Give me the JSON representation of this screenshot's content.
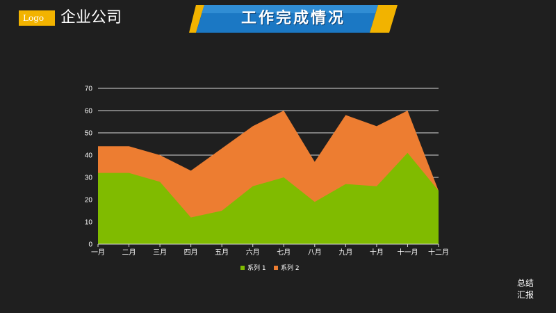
{
  "header": {
    "logo_text": "Logo",
    "company_name": "企业公司",
    "title": "工作完成情况"
  },
  "corner": {
    "line1": "总结",
    "line2": "汇报"
  },
  "colors": {
    "background": "#1f1f1f",
    "logo_bg": "#f2b300",
    "banner_blue": "#1b78c4",
    "banner_yellow": "#f2b300",
    "series1": "#80bb00",
    "series2": "#ed7d31",
    "gridline": "#d9d9d9",
    "axis_text": "#ffffff"
  },
  "chart_data": {
    "type": "area",
    "stacked": true,
    "categories": [
      "一月",
      "二月",
      "三月",
      "四月",
      "五月",
      "六月",
      "七月",
      "八月",
      "九月",
      "十月",
      "十一月",
      "十二月"
    ],
    "series": [
      {
        "name": "系列 1",
        "values": [
          32,
          32,
          28,
          12,
          15,
          26,
          30,
          19,
          27,
          26,
          41,
          24
        ]
      },
      {
        "name": "系列 2",
        "values": [
          12,
          12,
          12,
          21,
          28,
          27,
          30,
          18,
          31,
          27,
          19,
          0
        ]
      }
    ],
    "ylim": [
      0,
      70
    ],
    "yticks": [
      0,
      10,
      20,
      30,
      40,
      50,
      60,
      70
    ],
    "grid": true,
    "legend_position": "bottom"
  }
}
